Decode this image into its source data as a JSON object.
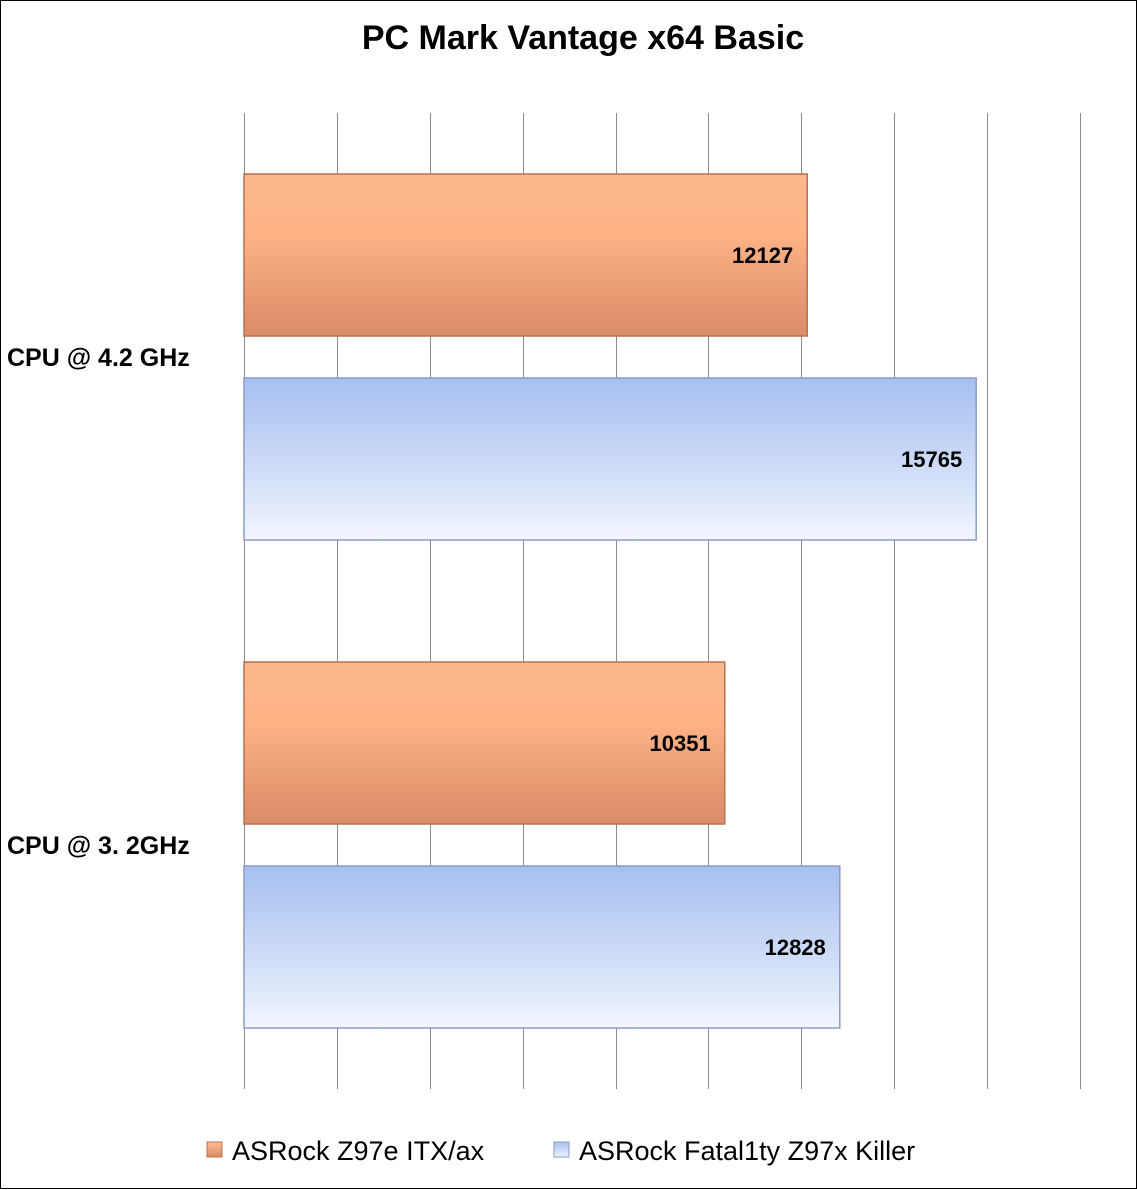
{
  "chart_data": {
    "type": "bar",
    "orientation": "horizontal",
    "title": "PC Mark Vantage x64 Basic",
    "categories": [
      "CPU @ 4.2 GHz",
      "CPU @ 3. 2GHz"
    ],
    "series": [
      {
        "name": "ASRock Z97e ITX/ax",
        "values": [
          12127,
          10351
        ],
        "color": "#f4a677"
      },
      {
        "name": "ASRock Fatal1ty Z97x Killer",
        "values": [
          15765,
          12828
        ],
        "color": "#b4c8f0"
      }
    ],
    "xlim": [
      0,
      18000
    ],
    "grid": true,
    "x_tick_labels_shown": false,
    "legend_position": "bottom"
  }
}
